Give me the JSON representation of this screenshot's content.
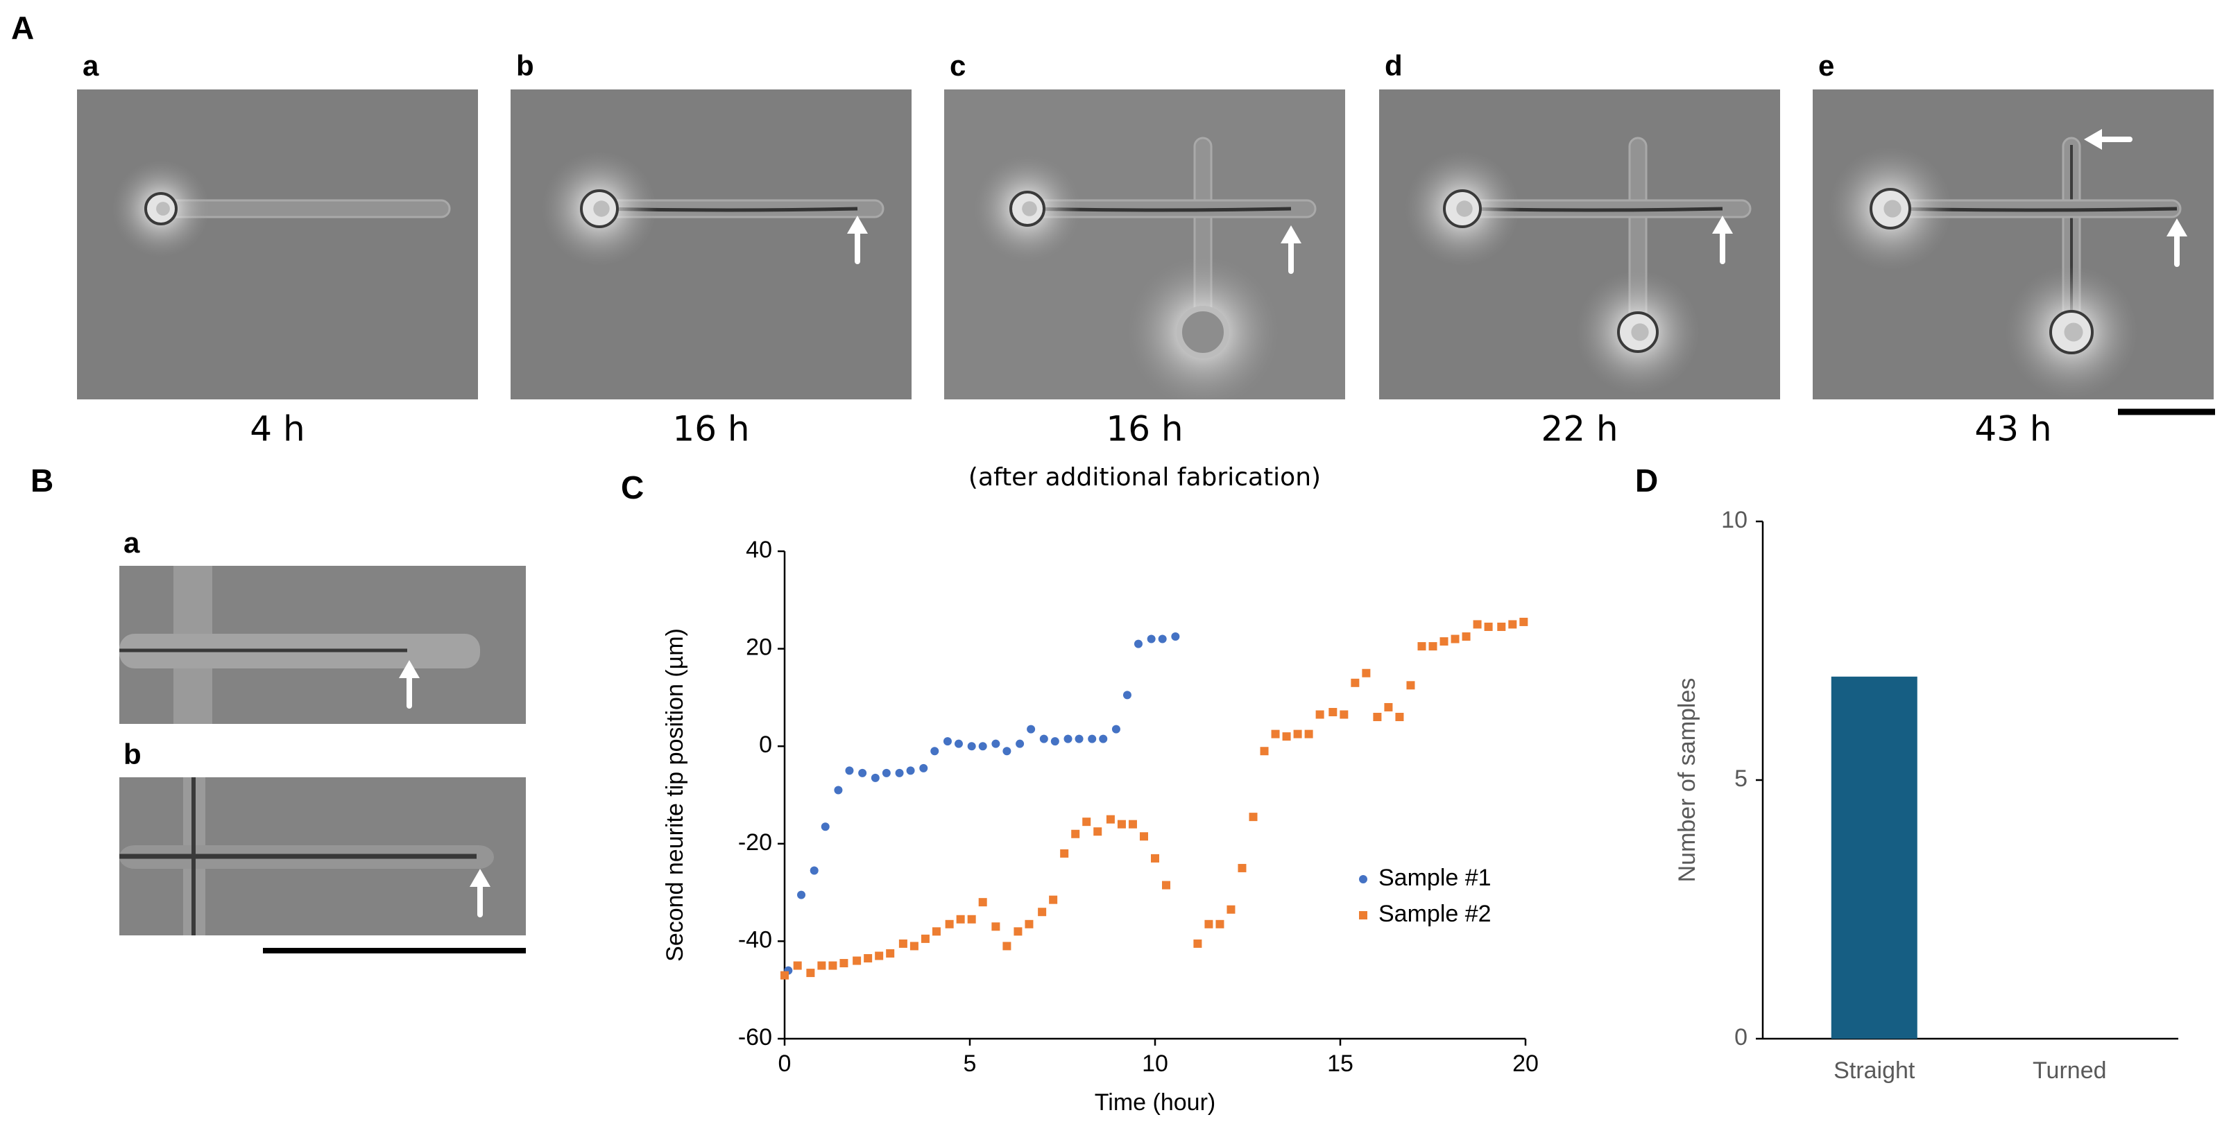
{
  "panels": {
    "A": {
      "label": "A",
      "images": [
        {
          "label": "a",
          "caption": "4 h"
        },
        {
          "label": "b",
          "caption": "16 h"
        },
        {
          "label": "c",
          "caption": "16 h",
          "note": "(after additional fabrication)"
        },
        {
          "label": "d",
          "caption": "22 h"
        },
        {
          "label": "e",
          "caption": "43 h"
        }
      ]
    },
    "B": {
      "label": "B",
      "images": [
        {
          "label": "a"
        },
        {
          "label": "b"
        }
      ]
    }
  },
  "chart_data": [
    {
      "type": "scatter",
      "panel": "C",
      "xlabel": "Time (hour)",
      "ylabel": "Second neurite tip position (µm)",
      "xlim": [
        0,
        20
      ],
      "xticks": [
        0,
        5,
        10,
        15,
        20
      ],
      "ylim": [
        -60,
        40
      ],
      "yticks": [
        -60,
        -40,
        -20,
        0,
        20,
        40
      ],
      "legend": "center right",
      "series": [
        {
          "name": "Sample #1",
          "color": "#4472c4",
          "marker": "circle",
          "x": [
            0.1,
            0.45,
            0.8,
            1.1,
            1.45,
            1.75,
            2.1,
            2.45,
            2.75,
            3.1,
            3.4,
            3.75,
            4.05,
            4.4,
            4.7,
            5.05,
            5.35,
            5.7,
            6.0,
            6.35,
            6.65,
            7.0,
            7.3,
            7.65,
            7.95,
            8.3,
            8.6,
            8.95,
            9.25,
            9.55,
            9.9,
            10.2,
            10.55
          ],
          "values": [
            -46,
            -30.5,
            -25.5,
            -16.5,
            -9,
            -5,
            -5.5,
            -6.5,
            -5.5,
            -5.5,
            -5,
            -4.5,
            -1,
            1,
            0.5,
            0,
            0,
            0.5,
            -1,
            0.5,
            3.5,
            1.5,
            1,
            1.5,
            1.5,
            1.5,
            1.5,
            3.5,
            10.5,
            21,
            22,
            22,
            22.5
          ]
        },
        {
          "name": "Sample #2",
          "color": "#ed7d31",
          "marker": "square",
          "x": [
            0,
            0.35,
            0.7,
            1.0,
            1.3,
            1.6,
            1.95,
            2.25,
            2.55,
            2.85,
            3.2,
            3.5,
            3.8,
            4.1,
            4.45,
            4.75,
            5.05,
            5.35,
            5.7,
            6.0,
            6.3,
            6.6,
            6.95,
            7.25,
            7.55,
            7.85,
            8.15,
            8.45,
            8.8,
            9.1,
            9.4,
            9.7,
            10.0,
            10.3,
            11.15,
            11.45,
            11.75,
            12.05,
            12.35,
            12.65,
            12.95,
            13.25,
            13.55,
            13.85,
            14.15,
            14.45,
            14.8,
            15.1,
            15.4,
            15.7,
            16.0,
            16.3,
            16.6,
            16.9,
            17.2,
            17.5,
            17.8,
            18.1,
            18.4,
            18.7,
            19.0,
            19.35,
            19.65,
            19.95
          ],
          "values": [
            -47,
            -45,
            -46.5,
            -45,
            -45,
            -44.5,
            -44,
            -43.5,
            -43,
            -42.5,
            -40.5,
            -41,
            -39.5,
            -38,
            -36.5,
            -35.5,
            -35.5,
            -32,
            -37,
            -41,
            -38,
            -36.5,
            -34,
            -31.5,
            -22,
            -18,
            -15.5,
            -17.5,
            -15,
            -16,
            -16,
            -18.5,
            -23,
            -28.5,
            -40.5,
            -36.5,
            -36.5,
            -33.5,
            -25,
            -14.5,
            -1,
            2.5,
            2,
            2.5,
            2.5,
            6.5,
            7,
            6.5,
            13,
            15,
            6,
            8,
            6,
            12.5,
            20.5,
            20.5,
            21.5,
            22,
            22.5,
            25,
            24.5,
            24.5,
            25,
            25.5
          ]
        }
      ]
    },
    {
      "type": "bar",
      "panel": "D",
      "ylabel": "Number of samples",
      "categories": [
        "Straight",
        "Turned"
      ],
      "values": [
        7,
        0
      ],
      "color": "#165e83",
      "ylim": [
        0,
        10
      ],
      "yticks": [
        0,
        5,
        10
      ]
    }
  ]
}
